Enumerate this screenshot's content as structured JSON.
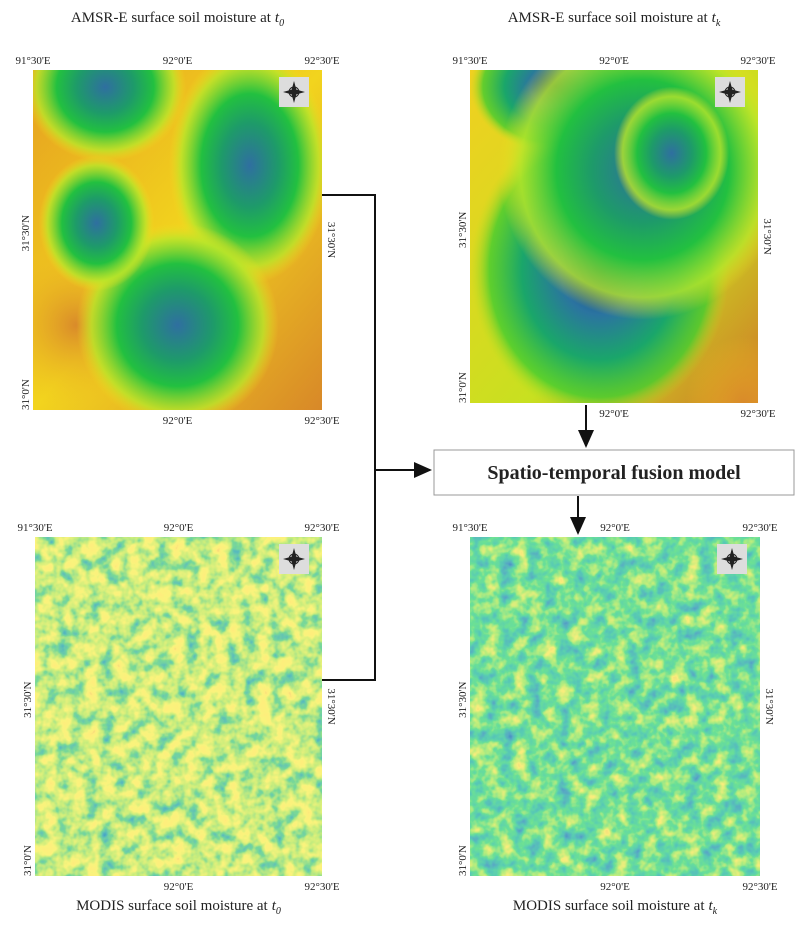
{
  "panels": [
    {
      "title": "AMSR-E surface soil moisture at",
      "time": "t",
      "time_sub": "0",
      "top_labels": [
        "91°30'E",
        "92°0'E",
        "92°30'E"
      ],
      "bottom_labels": [
        "92°0'E",
        "92°30'E"
      ],
      "left_labels": [
        "31°30'N",
        "31°0'N"
      ],
      "right_labels": [
        "31°30'N"
      ]
    },
    {
      "title": "AMSR-E surface soil moisture at",
      "time": "t",
      "time_sub": "k",
      "top_labels": [
        "91°30'E",
        "92°0'E",
        "92°30'E"
      ],
      "bottom_labels": [
        "92°0'E",
        "92°30'E"
      ],
      "left_labels": [
        "31°30'N",
        "31°0'N"
      ],
      "right_labels": [
        "31°30'N"
      ]
    },
    {
      "title": "MODIS surface soil moisture at",
      "time": "t",
      "time_sub": "0",
      "top_labels": [
        "91°30'E",
        "92°0'E",
        "92°30'E"
      ],
      "bottom_labels": [
        "92°0'E",
        "92°30'E"
      ],
      "left_labels": [
        "31°30'N",
        "31°0'N"
      ],
      "right_labels": [
        "31°30'N"
      ]
    },
    {
      "title": "MODIS surface soil moisture at",
      "time": "t",
      "time_sub": "k",
      "top_labels": [
        "91°30'E",
        "92°0'E",
        "92°30'E"
      ],
      "bottom_labels": [
        "92°0'E",
        "92°30'E"
      ],
      "left_labels": [
        "31°30'N",
        "31°0'N"
      ],
      "right_labels": [
        "31°30'N"
      ]
    }
  ],
  "fusion_model": {
    "label": "Spatio-temporal fusion model"
  }
}
